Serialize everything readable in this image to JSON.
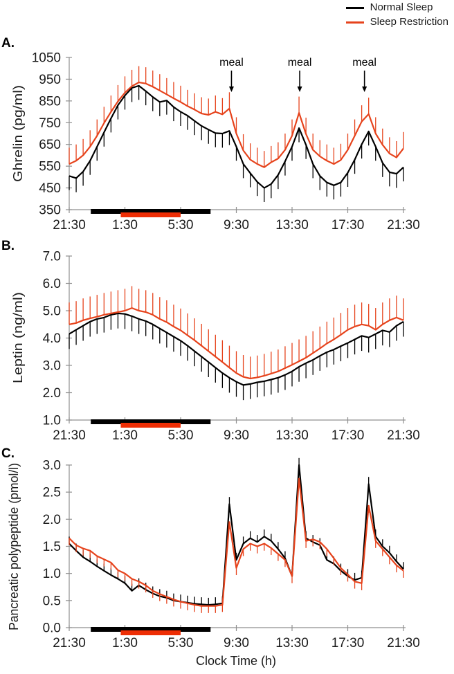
{
  "legend": {
    "items": [
      {
        "label": "Normal Sleep",
        "color": "#000000"
      },
      {
        "label": "Sleep Restriction",
        "color": "#e6431c"
      }
    ],
    "position": "top-right"
  },
  "x_axis": {
    "title": "Clock Time (h)",
    "start_clock": "21:30",
    "hours_span": 24,
    "sample_interval_h": 0.5,
    "tick_hours": [
      0,
      4,
      8,
      12,
      16,
      20,
      24
    ],
    "tick_labels": [
      "21:30",
      "1:30",
      "5:30",
      "9:30",
      "13:30",
      "17:30",
      "21:30"
    ]
  },
  "meals": {
    "label": "meal",
    "times_h_after_start": [
      11.65,
      16.55,
      21.2
    ],
    "clock_times": [
      "9:05",
      "14:00",
      "18:40"
    ]
  },
  "sleep_bars": {
    "normal": {
      "color": "#000000",
      "start_h": 1.55,
      "end_h": 10.15,
      "clock": "23:00-7:40"
    },
    "restriction": {
      "color": "#ee2e05",
      "start_h": 3.7,
      "end_h": 8.0,
      "clock": "1:10-5:30"
    }
  },
  "chart_data": [
    {
      "panel_id": "A",
      "panel_letter": "A.",
      "type": "line",
      "ylabel": "Ghrelin (pg/ml)",
      "ylim": [
        350,
        1050
      ],
      "ytick_step": 100,
      "y_decimals": 0,
      "grid": false,
      "show_meals": true,
      "series": [
        {
          "name": "Normal Sleep",
          "color": "#000000",
          "error_dir": "down",
          "error_size": 65,
          "values": [
            505,
            495,
            525,
            575,
            640,
            705,
            770,
            830,
            875,
            910,
            920,
            895,
            868,
            845,
            852,
            822,
            800,
            782,
            758,
            735,
            718,
            702,
            700,
            712,
            640,
            560,
            518,
            478,
            450,
            468,
            510,
            572,
            640,
            725,
            648,
            560,
            505,
            475,
            462,
            475,
            520,
            580,
            650,
            710,
            640,
            565,
            522,
            515,
            545
          ]
        },
        {
          "name": "Sleep Restriction",
          "color": "#e6431c",
          "error_dir": "up",
          "error_size": 75,
          "values": [
            560,
            575,
            600,
            640,
            690,
            748,
            800,
            848,
            888,
            918,
            935,
            930,
            915,
            898,
            880,
            862,
            845,
            826,
            810,
            792,
            786,
            800,
            788,
            815,
            700,
            622,
            580,
            560,
            545,
            568,
            585,
            625,
            690,
            795,
            698,
            625,
            595,
            575,
            560,
            578,
            625,
            690,
            755,
            790,
            700,
            648,
            608,
            590,
            632
          ]
        }
      ]
    },
    {
      "panel_id": "B",
      "panel_letter": "B.",
      "type": "line",
      "ylabel": "Leptin (ng/ml)",
      "ylim": [
        1.0,
        7.0
      ],
      "ytick_step": 1.0,
      "y_decimals": 1,
      "grid": false,
      "show_meals": false,
      "series": [
        {
          "name": "Normal Sleep",
          "color": "#000000",
          "error_dir": "down",
          "error_size": 0.55,
          "values": [
            4.15,
            4.3,
            4.45,
            4.6,
            4.7,
            4.75,
            4.85,
            4.9,
            4.88,
            4.8,
            4.7,
            4.62,
            4.5,
            4.35,
            4.2,
            4.05,
            3.9,
            3.72,
            3.52,
            3.32,
            3.12,
            2.92,
            2.72,
            2.55,
            2.4,
            2.28,
            2.32,
            2.38,
            2.42,
            2.48,
            2.55,
            2.65,
            2.78,
            2.95,
            3.08,
            3.2,
            3.35,
            3.48,
            3.58,
            3.7,
            3.82,
            3.95,
            4.08,
            4.02,
            4.15,
            4.28,
            4.22,
            4.45,
            4.6
          ]
        },
        {
          "name": "Sleep Restriction",
          "color": "#e6431c",
          "error_dir": "up",
          "error_size": 0.8,
          "values": [
            4.5,
            4.55,
            4.65,
            4.72,
            4.78,
            4.85,
            4.9,
            4.95,
            5.0,
            5.1,
            5.0,
            4.95,
            4.85,
            4.7,
            4.58,
            4.42,
            4.28,
            4.1,
            3.92,
            3.72,
            3.52,
            3.32,
            3.12,
            2.92,
            2.72,
            2.58,
            2.52,
            2.56,
            2.62,
            2.7,
            2.78,
            2.9,
            3.02,
            3.15,
            3.28,
            3.45,
            3.62,
            3.8,
            3.95,
            4.12,
            4.3,
            4.42,
            4.5,
            4.45,
            4.3,
            4.5,
            4.65,
            4.75,
            4.65
          ]
        }
      ]
    },
    {
      "panel_id": "C",
      "panel_letter": "C.",
      "type": "line",
      "ylabel": "Pancreatic polypeptide (pmol/l)",
      "ylim": [
        0.0,
        3.0
      ],
      "ytick_step": 0.5,
      "y_decimals": 1,
      "grid": false,
      "show_meals": false,
      "series": [
        {
          "name": "Normal Sleep",
          "color": "#000000",
          "error_dir": "up",
          "error_size": 0.13,
          "values": [
            1.55,
            1.42,
            1.3,
            1.22,
            1.13,
            1.05,
            0.97,
            0.9,
            0.82,
            0.68,
            0.78,
            0.7,
            0.63,
            0.58,
            0.55,
            0.5,
            0.48,
            0.46,
            0.44,
            0.43,
            0.42,
            0.43,
            0.45,
            2.28,
            1.25,
            1.55,
            1.65,
            1.58,
            1.68,
            1.6,
            1.45,
            1.28,
            0.95,
            3.0,
            1.65,
            1.58,
            1.52,
            1.25,
            1.18,
            1.05,
            0.95,
            0.88,
            0.92,
            2.65,
            1.68,
            1.5,
            1.38,
            1.22,
            1.08
          ]
        },
        {
          "name": "Sleep Restriction",
          "color": "#e6431c",
          "error_dir": "down",
          "error_size": 0.13,
          "values": [
            1.65,
            1.52,
            1.46,
            1.42,
            1.32,
            1.26,
            1.2,
            1.06,
            1.0,
            0.9,
            0.85,
            0.78,
            0.68,
            0.62,
            0.57,
            0.52,
            0.48,
            0.45,
            0.42,
            0.4,
            0.4,
            0.4,
            0.42,
            1.95,
            1.1,
            1.45,
            1.55,
            1.5,
            1.55,
            1.47,
            1.36,
            1.25,
            0.95,
            2.75,
            1.6,
            1.63,
            1.58,
            1.45,
            1.28,
            1.1,
            0.98,
            0.85,
            0.82,
            2.25,
            1.6,
            1.45,
            1.3,
            1.15,
            1.05
          ]
        }
      ]
    }
  ]
}
